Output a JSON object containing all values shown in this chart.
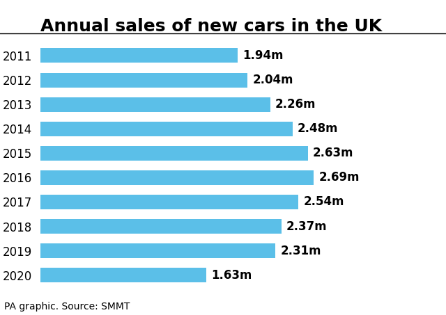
{
  "title": "Annual sales of new cars in the UK",
  "years": [
    "2011",
    "2012",
    "2013",
    "2014",
    "2015",
    "2016",
    "2017",
    "2018",
    "2019",
    "2020"
  ],
  "values": [
    1.94,
    2.04,
    2.26,
    2.48,
    2.63,
    2.69,
    2.54,
    2.37,
    2.31,
    1.63
  ],
  "labels": [
    "1.94m",
    "2.04m",
    "2.26m",
    "2.48m",
    "2.63m",
    "2.69m",
    "2.54m",
    "2.37m",
    "2.31m",
    "1.63m"
  ],
  "bar_color": "#5bbfe8",
  "background_color": "#ffffff",
  "title_fontsize": 18,
  "label_fontsize": 12,
  "year_fontsize": 12,
  "caption": "PA graphic. Source: SMMT",
  "caption_fontsize": 10,
  "xlim": [
    0,
    3.2
  ]
}
